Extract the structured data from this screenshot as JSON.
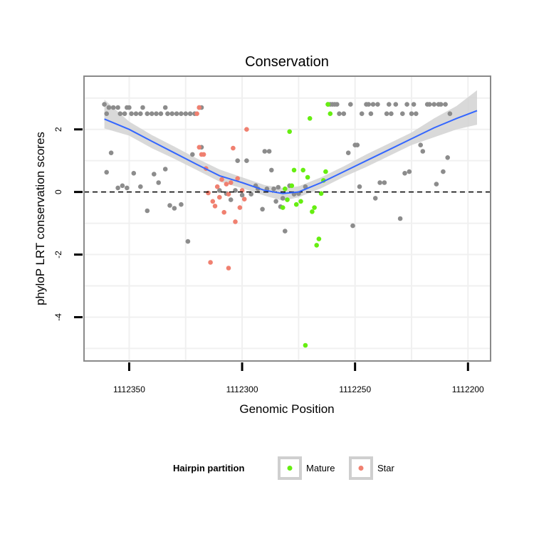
{
  "chart_data": {
    "type": "scatter",
    "title": "Conservation",
    "xlabel": "Genomic Position",
    "ylabel": "phyloP LRT conservation scores",
    "x_reversed": true,
    "xlim": [
      1112370,
      1112190
    ],
    "ylim": [
      -5.4,
      3.7
    ],
    "xticks": [
      1112350,
      1112300,
      1112250,
      1112200
    ],
    "xtick_labels": [
      "1112350",
      "1112300",
      "1112250",
      "1112200"
    ],
    "yticks": [
      2,
      0,
      -2,
      -4
    ],
    "ytick_labels": [
      "2",
      "0",
      "-2",
      "-4"
    ],
    "grid": true,
    "hline": 0,
    "colors": {
      "other": "#8c8c8c",
      "mature": "#66ee11",
      "star": "#f08070",
      "smooth": "#3366ff",
      "band": "#d2d2d2",
      "panel_border": "#8a8a8a",
      "grid": "#f0f0f0"
    },
    "legend": {
      "title": "Hairpin partition",
      "position": "bottom",
      "entries": [
        {
          "label": "Mature",
          "color": "#66ee11"
        },
        {
          "label": "Star",
          "color": "#f08070"
        }
      ]
    },
    "smooth": {
      "x": [
        1112361,
        1112350,
        1112340,
        1112330,
        1112320,
        1112310,
        1112300,
        1112290,
        1112282,
        1112275,
        1112265,
        1112255,
        1112245,
        1112235,
        1112225,
        1112215,
        1112205,
        1112196
      ],
      "y": [
        2.33,
        2.0,
        1.62,
        1.25,
        0.88,
        0.52,
        0.3,
        0.05,
        -0.05,
        0.0,
        0.3,
        0.65,
        1.0,
        1.35,
        1.7,
        2.05,
        2.35,
        2.6
      ],
      "lower": [
        2.03,
        1.8,
        1.4,
        1.06,
        0.7,
        0.33,
        0.12,
        -0.12,
        -0.28,
        -0.17,
        0.12,
        0.48,
        0.8,
        1.15,
        1.5,
        1.75,
        2.0,
        2.15
      ],
      "upper": [
        2.95,
        2.25,
        1.82,
        1.45,
        1.07,
        0.72,
        0.47,
        0.22,
        0.13,
        0.18,
        0.47,
        0.82,
        1.2,
        1.55,
        1.9,
        2.35,
        2.75,
        3.25
      ]
    },
    "series": [
      {
        "name": "Other",
        "legend": false,
        "points": [
          [
            1112361,
            2.8
          ],
          [
            1112360,
            2.5
          ],
          [
            1112359,
            2.7
          ],
          [
            1112357,
            2.7
          ],
          [
            1112355,
            2.7
          ],
          [
            1112354,
            2.5
          ],
          [
            1112352,
            2.5
          ],
          [
            1112351,
            2.7
          ],
          [
            1112350,
            2.7
          ],
          [
            1112349,
            2.5
          ],
          [
            1112347,
            2.5
          ],
          [
            1112345,
            2.5
          ],
          [
            1112344,
            2.7
          ],
          [
            1112342,
            2.5
          ],
          [
            1112340,
            2.5
          ],
          [
            1112338,
            2.5
          ],
          [
            1112336,
            2.5
          ],
          [
            1112334,
            2.7
          ],
          [
            1112333,
            2.5
          ],
          [
            1112331,
            2.5
          ],
          [
            1112329,
            2.5
          ],
          [
            1112327,
            2.5
          ],
          [
            1112325,
            2.5
          ],
          [
            1112323,
            2.5
          ],
          [
            1112321,
            2.5
          ],
          [
            1112319,
            2.7
          ],
          [
            1112318,
            2.7
          ],
          [
            1112360,
            0.63
          ],
          [
            1112358,
            1.25
          ],
          [
            1112355,
            0.13
          ],
          [
            1112353,
            0.2
          ],
          [
            1112351,
            0.13
          ],
          [
            1112348,
            0.6
          ],
          [
            1112345,
            0.17
          ],
          [
            1112342,
            -0.6
          ],
          [
            1112339,
            0.57
          ],
          [
            1112337,
            0.3
          ],
          [
            1112334,
            0.73
          ],
          [
            1112332,
            -0.43
          ],
          [
            1112330,
            -0.52
          ],
          [
            1112327,
            -0.4
          ],
          [
            1112324,
            -1.58
          ],
          [
            1112322,
            1.2
          ],
          [
            1112318,
            1.43
          ],
          [
            1112310,
            0.05
          ],
          [
            1112307,
            -0.05
          ],
          [
            1112305,
            -0.25
          ],
          [
            1112303,
            0.05
          ],
          [
            1112302,
            1.0
          ],
          [
            1112300,
            -0.1
          ],
          [
            1112298,
            1.0
          ],
          [
            1112296,
            -0.07
          ],
          [
            1112294,
            0.2
          ],
          [
            1112293,
            0.1
          ],
          [
            1112291,
            -0.55
          ],
          [
            1112290,
            1.3
          ],
          [
            1112289,
            0.1
          ],
          [
            1112288,
            1.3
          ],
          [
            1112287,
            0.7
          ],
          [
            1112286,
            0.1
          ],
          [
            1112285,
            -0.3
          ],
          [
            1112284,
            0.15
          ],
          [
            1112283,
            -0.47
          ],
          [
            1112282,
            -0.2
          ],
          [
            1112281,
            -1.25
          ],
          [
            1112279,
            0.2
          ],
          [
            1112277,
            -0.07
          ],
          [
            1112275,
            -0.05
          ],
          [
            1112272,
            0.17
          ],
          [
            1112262,
            2.8
          ],
          [
            1112261,
            2.8
          ],
          [
            1112260,
            2.8
          ],
          [
            1112259,
            2.8
          ],
          [
            1112258,
            2.8
          ],
          [
            1112257,
            2.5
          ],
          [
            1112255,
            2.5
          ],
          [
            1112253,
            1.25
          ],
          [
            1112252,
            2.8
          ],
          [
            1112251,
            -1.08
          ],
          [
            1112250,
            1.5
          ],
          [
            1112249,
            1.5
          ],
          [
            1112248,
            0.17
          ],
          [
            1112247,
            2.5
          ],
          [
            1112245,
            2.8
          ],
          [
            1112244,
            2.8
          ],
          [
            1112243,
            2.5
          ],
          [
            1112242,
            2.8
          ],
          [
            1112241,
            -0.2
          ],
          [
            1112240,
            2.8
          ],
          [
            1112239,
            0.3
          ],
          [
            1112237,
            0.3
          ],
          [
            1112236,
            2.5
          ],
          [
            1112235,
            2.8
          ],
          [
            1112234,
            2.5
          ],
          [
            1112232,
            2.8
          ],
          [
            1112230,
            -0.85
          ],
          [
            1112229,
            2.5
          ],
          [
            1112228,
            0.6
          ],
          [
            1112227,
            2.8
          ],
          [
            1112226,
            0.65
          ],
          [
            1112225,
            2.5
          ],
          [
            1112224,
            2.8
          ],
          [
            1112223,
            2.5
          ],
          [
            1112221,
            1.5
          ],
          [
            1112220,
            1.3
          ],
          [
            1112218,
            2.8
          ],
          [
            1112217,
            2.8
          ],
          [
            1112215,
            2.8
          ],
          [
            1112214,
            0.25
          ],
          [
            1112213,
            2.8
          ],
          [
            1112212,
            2.8
          ],
          [
            1112211,
            0.65
          ],
          [
            1112210,
            2.8
          ],
          [
            1112209,
            1.1
          ],
          [
            1112208,
            2.5
          ]
        ]
      },
      {
        "name": "Mature",
        "legend": true,
        "points": [
          [
            1112262,
            2.8
          ],
          [
            1112261,
            2.5
          ],
          [
            1112263,
            0.65
          ],
          [
            1112264,
            0.37
          ],
          [
            1112265,
            -0.05
          ],
          [
            1112266,
            -1.5
          ],
          [
            1112267,
            -1.7
          ],
          [
            1112268,
            -0.5
          ],
          [
            1112269,
            -0.63
          ],
          [
            1112270,
            2.35
          ],
          [
            1112271,
            0.47
          ],
          [
            1112272,
            -4.9
          ],
          [
            1112273,
            0.7
          ],
          [
            1112274,
            -0.3
          ],
          [
            1112276,
            -0.4
          ],
          [
            1112277,
            0.7
          ],
          [
            1112278,
            0.2
          ],
          [
            1112279,
            1.93
          ],
          [
            1112280,
            -0.25
          ],
          [
            1112281,
            0.1
          ],
          [
            1112282,
            -0.5
          ]
        ]
      },
      {
        "name": "Star",
        "legend": true,
        "points": [
          [
            1112319,
            2.7
          ],
          [
            1112320,
            2.5
          ],
          [
            1112319,
            1.43
          ],
          [
            1112318,
            1.2
          ],
          [
            1112317,
            1.2
          ],
          [
            1112316,
            0.75
          ],
          [
            1112315,
            -0.03
          ],
          [
            1112314,
            -2.25
          ],
          [
            1112313,
            -0.3
          ],
          [
            1112312,
            -0.45
          ],
          [
            1112311,
            0.17
          ],
          [
            1112310,
            -0.17
          ],
          [
            1112309,
            0.4
          ],
          [
            1112308,
            -0.65
          ],
          [
            1112307,
            0.25
          ],
          [
            1112306,
            -0.07
          ],
          [
            1112305,
            0.3
          ],
          [
            1112304,
            1.4
          ],
          [
            1112303,
            -0.95
          ],
          [
            1112302,
            0.43
          ],
          [
            1112301,
            -0.5
          ],
          [
            1112300,
            0.05
          ],
          [
            1112299,
            -0.23
          ],
          [
            1112298,
            2.0
          ],
          [
            1112306,
            -2.43
          ]
        ]
      }
    ]
  }
}
